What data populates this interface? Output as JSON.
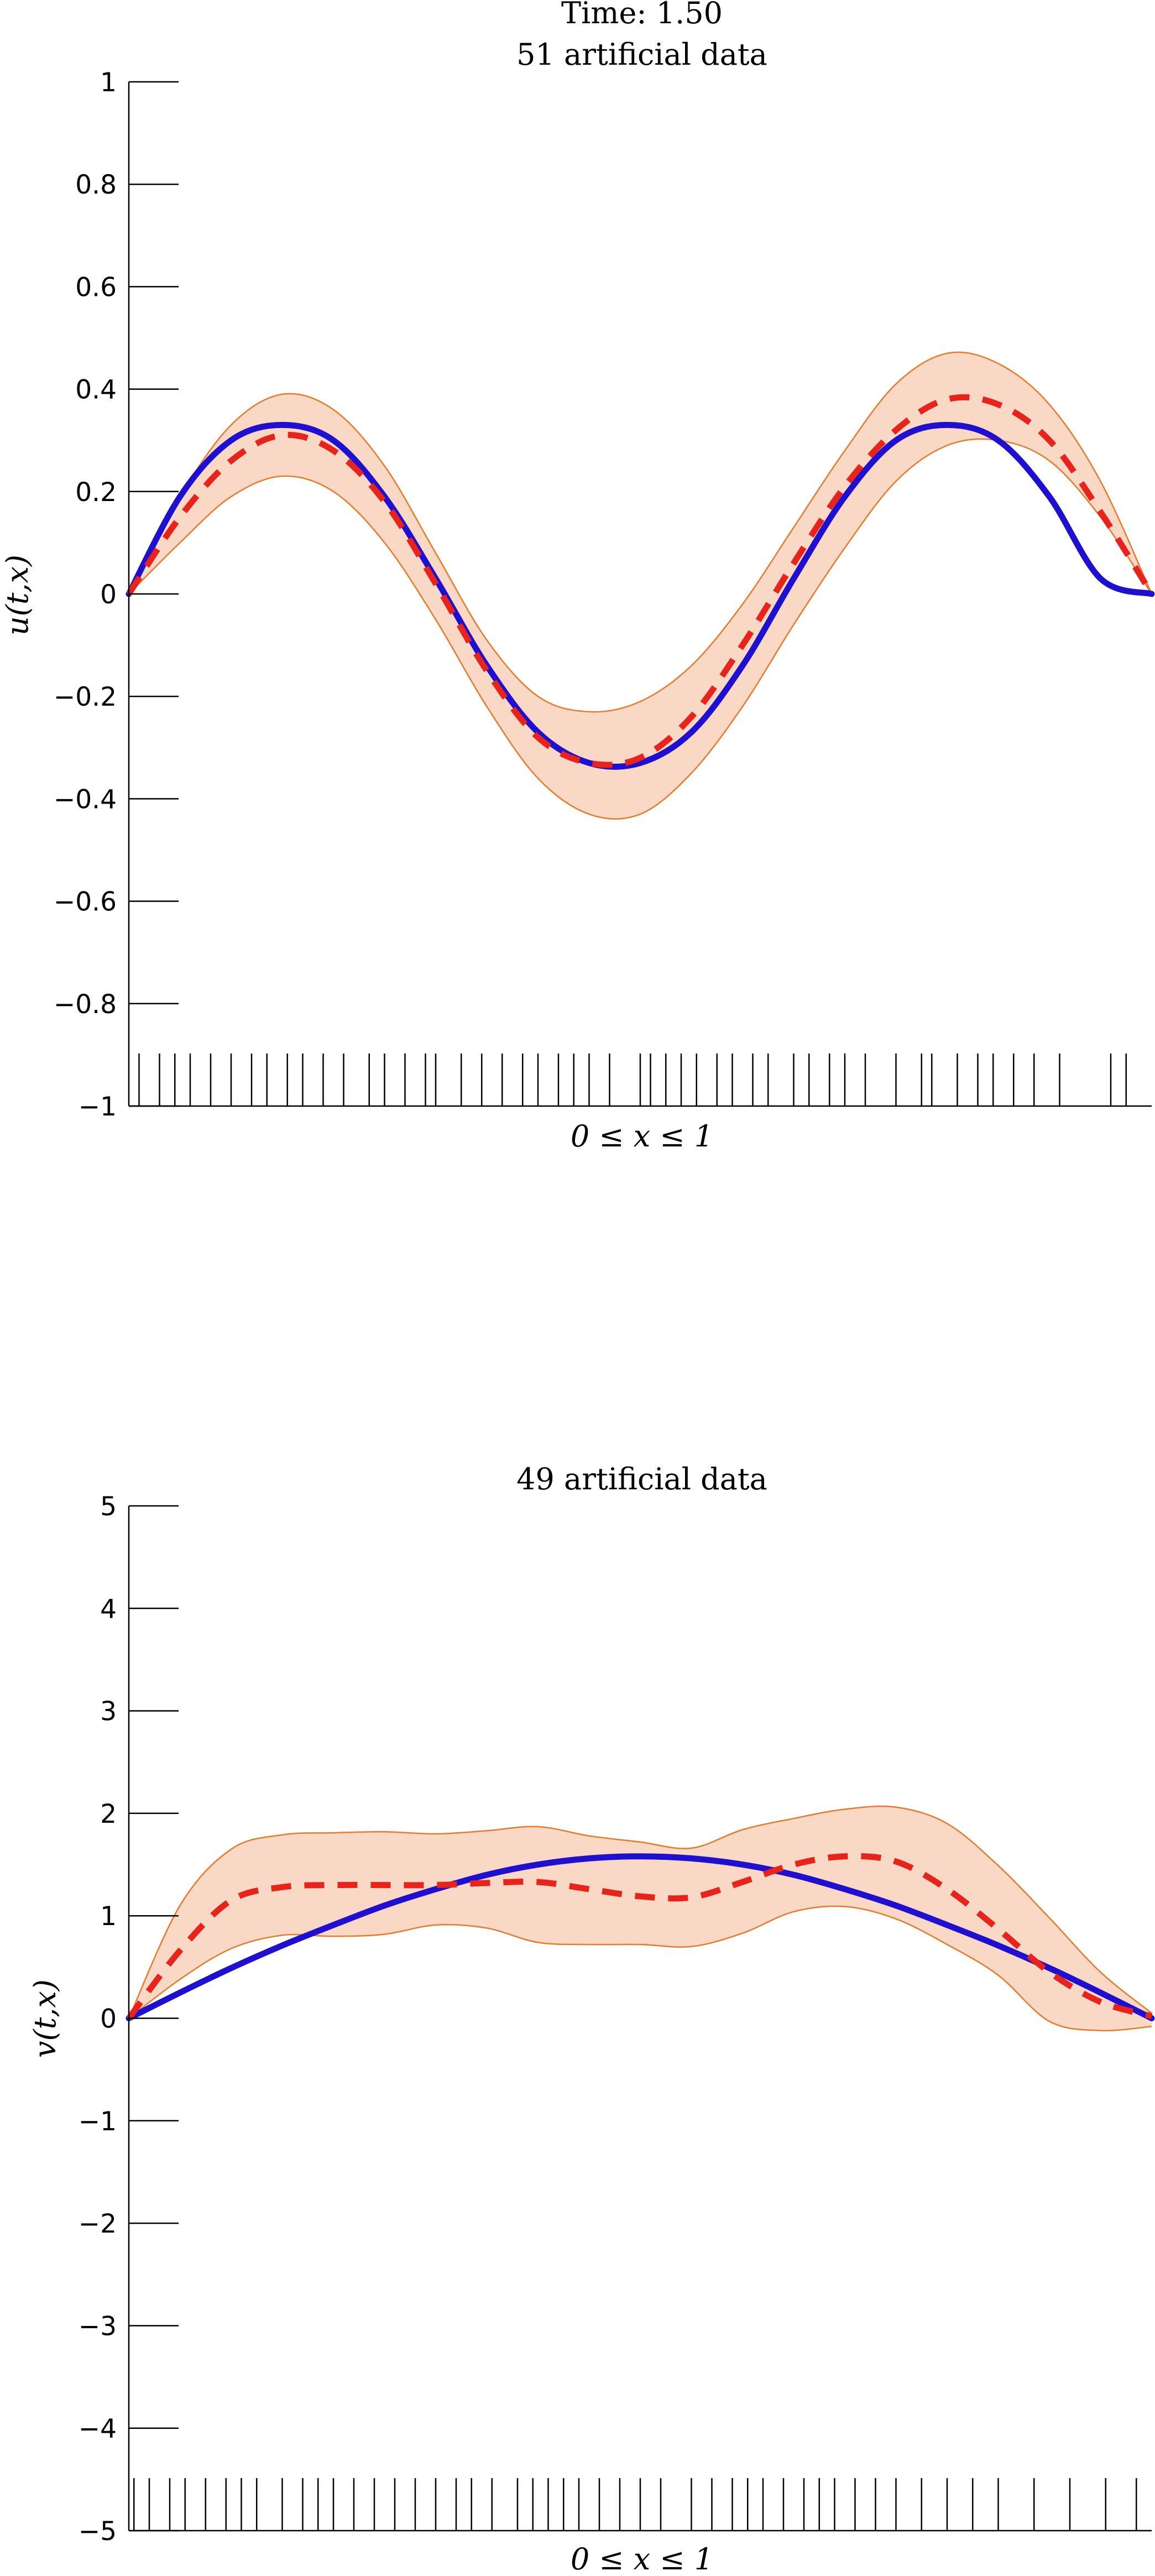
{
  "figure": {
    "suptitle": "Time: 1.50",
    "colors": {
      "exact": "#1f10d0",
      "estimate": "#e8231b",
      "band_fill": "#f9d9c6",
      "band_edge": "#e87a2a",
      "axis": "#000000"
    }
  },
  "chart_data": [
    {
      "type": "line",
      "title": "51 artificial data",
      "xlabel": "0 ≤ x ≤ 1",
      "ylabel": "u(t,x)",
      "xlim": [
        0,
        1
      ],
      "ylim": [
        -1,
        1
      ],
      "yticks": [
        -1,
        -0.8,
        -0.6,
        -0.4,
        -0.2,
        0,
        0.2,
        0.4,
        0.6,
        0.8,
        1
      ],
      "ytick_labels": [
        "−1",
        "−0.8",
        "−0.6",
        "−0.4",
        "−0.2",
        "0",
        "0.2",
        "0.4",
        "0.6",
        "0.8",
        "1"
      ],
      "grid": false,
      "x": [
        0,
        0.05,
        0.1,
        0.15,
        0.2,
        0.25,
        0.3,
        0.35,
        0.4,
        0.45,
        0.5,
        0.55,
        0.6,
        0.65,
        0.7,
        0.75,
        0.8,
        0.85,
        0.9,
        0.95,
        1
      ],
      "series": [
        {
          "role": "band_upper",
          "values": [
            0,
            0.19,
            0.33,
            0.39,
            0.36,
            0.25,
            0.08,
            -0.09,
            -0.2,
            -0.23,
            -0.21,
            -0.14,
            -0.02,
            0.13,
            0.28,
            0.41,
            0.47,
            0.45,
            0.37,
            0.22,
            0
          ]
        },
        {
          "role": "band_lower",
          "values": [
            0,
            0.1,
            0.19,
            0.23,
            0.2,
            0.1,
            -0.05,
            -0.22,
            -0.36,
            -0.43,
            -0.43,
            -0.35,
            -0.22,
            -0.06,
            0.09,
            0.22,
            0.29,
            0.3,
            0.26,
            0.15,
            0
          ]
        },
        {
          "role": "exact",
          "values": [
            0,
            0.19,
            0.3,
            0.33,
            0.3,
            0.19,
            0.03,
            -0.14,
            -0.27,
            -0.33,
            -0.33,
            -0.27,
            -0.14,
            0.03,
            0.19,
            0.3,
            0.33,
            0.3,
            0.19,
            0.03,
            0
          ]
        },
        {
          "role": "estimate",
          "values": [
            0,
            0.15,
            0.26,
            0.31,
            0.28,
            0.18,
            0.02,
            -0.15,
            -0.28,
            -0.33,
            -0.32,
            -0.24,
            -0.1,
            0.06,
            0.21,
            0.32,
            0.38,
            0.37,
            0.3,
            0.16,
            0
          ]
        }
      ],
      "rug_x": [
        0.01,
        0.03,
        0.045,
        0.06,
        0.08,
        0.1,
        0.12,
        0.135,
        0.155,
        0.17,
        0.19,
        0.21,
        0.235,
        0.25,
        0.27,
        0.29,
        0.3,
        0.325,
        0.345,
        0.365,
        0.385,
        0.4,
        0.42,
        0.435,
        0.45,
        0.47,
        0.5,
        0.51,
        0.525,
        0.54,
        0.555,
        0.575,
        0.59,
        0.61,
        0.625,
        0.65,
        0.665,
        0.685,
        0.7,
        0.72,
        0.75,
        0.775,
        0.785,
        0.81,
        0.83,
        0.845,
        0.865,
        0.885,
        0.91,
        0.96,
        0.975
      ]
    },
    {
      "type": "line",
      "title": "49 artificial data",
      "xlabel": "0 ≤ x ≤ 1",
      "ylabel": "v(t,x)",
      "xlim": [
        0,
        1
      ],
      "ylim": [
        -5,
        5
      ],
      "yticks": [
        -5,
        -4,
        -3,
        -2,
        -1,
        0,
        1,
        2,
        3,
        4,
        5
      ],
      "ytick_labels": [
        "−5",
        "−4",
        "−3",
        "−2",
        "−1",
        "0",
        "1",
        "2",
        "3",
        "4",
        "5"
      ],
      "grid": false,
      "x": [
        0,
        0.05,
        0.1,
        0.15,
        0.2,
        0.25,
        0.3,
        0.35,
        0.4,
        0.45,
        0.5,
        0.55,
        0.6,
        0.65,
        0.7,
        0.75,
        0.8,
        0.85,
        0.9,
        0.95,
        1
      ],
      "series": [
        {
          "role": "band_upper",
          "values": [
            0,
            1.1,
            1.65,
            1.79,
            1.81,
            1.82,
            1.8,
            1.83,
            1.87,
            1.78,
            1.72,
            1.66,
            1.84,
            1.95,
            2.04,
            2.06,
            1.9,
            1.49,
            0.98,
            0.45,
            0.05
          ]
        },
        {
          "role": "band_lower",
          "values": [
            0,
            0.38,
            0.68,
            0.81,
            0.8,
            0.82,
            0.91,
            0.88,
            0.74,
            0.72,
            0.72,
            0.7,
            0.83,
            1.04,
            1.09,
            0.97,
            0.72,
            0.42,
            -0.03,
            -0.12,
            -0.08
          ]
        },
        {
          "role": "exact",
          "values": [
            0,
            0.25,
            0.49,
            0.71,
            0.91,
            1.1,
            1.26,
            1.4,
            1.5,
            1.56,
            1.58,
            1.56,
            1.5,
            1.4,
            1.26,
            1.1,
            0.91,
            0.71,
            0.49,
            0.25,
            0
          ]
        },
        {
          "role": "estimate",
          "values": [
            0,
            0.66,
            1.15,
            1.28,
            1.3,
            1.3,
            1.3,
            1.32,
            1.33,
            1.26,
            1.19,
            1.18,
            1.33,
            1.5,
            1.58,
            1.53,
            1.26,
            0.87,
            0.45,
            0.16,
            0.02
          ]
        }
      ],
      "rug_x": [
        0.005,
        0.02,
        0.04,
        0.055,
        0.075,
        0.095,
        0.11,
        0.125,
        0.15,
        0.17,
        0.185,
        0.2,
        0.22,
        0.24,
        0.26,
        0.28,
        0.3,
        0.32,
        0.335,
        0.355,
        0.38,
        0.395,
        0.41,
        0.425,
        0.44,
        0.46,
        0.48,
        0.5,
        0.52,
        0.55,
        0.57,
        0.59,
        0.605,
        0.62,
        0.64,
        0.66,
        0.675,
        0.69,
        0.71,
        0.73,
        0.75,
        0.775,
        0.8,
        0.825,
        0.85,
        0.885,
        0.92,
        0.955,
        0.985
      ]
    }
  ]
}
